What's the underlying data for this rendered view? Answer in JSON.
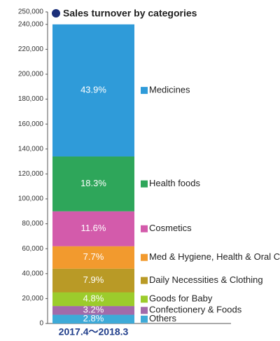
{
  "chart_data": {
    "type": "stacked_bar",
    "title": "Sales turnover by categories",
    "categories": [
      "2017.4～2018.3"
    ],
    "series": [
      {
        "name": "Others",
        "color": "#3eaad8",
        "values": [
          7000
        ],
        "value_labels": [
          "2.8%"
        ]
      },
      {
        "name": "Confectionery & Foods",
        "color": "#a26aaa",
        "values": [
          7000
        ],
        "value_labels": [
          "3.2%"
        ]
      },
      {
        "name": "Goods for Baby",
        "color": "#9ccc2c",
        "values": [
          11000
        ],
        "value_labels": [
          "4.8%"
        ]
      },
      {
        "name": "Daily Necessities & Clothing",
        "color": "#b99a26",
        "values": [
          19000
        ],
        "value_labels": [
          "7.9%"
        ]
      },
      {
        "name": "Med & Hygiene, Health & Oral Care",
        "color": "#f29a2e",
        "values": [
          18000
        ],
        "value_labels": [
          "7.7%"
        ]
      },
      {
        "name": "Cosmetics",
        "color": "#d35bab",
        "values": [
          28000
        ],
        "value_labels": [
          "11.6%"
        ]
      },
      {
        "name": "Health foods",
        "color": "#2ea65a",
        "values": [
          44000
        ],
        "value_labels": [
          "18.3%"
        ]
      },
      {
        "name": "Medicines",
        "color": "#2f9bd9",
        "values": [
          106000
        ],
        "value_labels": [
          "43.9%"
        ]
      }
    ],
    "ylim": [
      0,
      250000
    ],
    "yticks": [
      0,
      {
        "value": 20000,
        "label": "20,000"
      },
      {
        "value": 40000,
        "label": "40,000"
      },
      {
        "value": 60000,
        "label": "60,000"
      },
      {
        "value": 80000,
        "label": "80,000"
      },
      {
        "value": 100000,
        "label": "100,000"
      },
      {
        "value": 120000,
        "label": "120,000"
      },
      {
        "value": 140000,
        "label": "140,000"
      },
      {
        "value": 160000,
        "label": "160,000"
      },
      {
        "value": 180000,
        "label": "180,000"
      },
      {
        "value": 200000,
        "label": "200,000"
      },
      {
        "value": 220000,
        "label": "220,000"
      },
      {
        "value": 240000,
        "label": "240,000"
      },
      {
        "value": 250000,
        "label": "250,000"
      }
    ],
    "grid": false
  }
}
